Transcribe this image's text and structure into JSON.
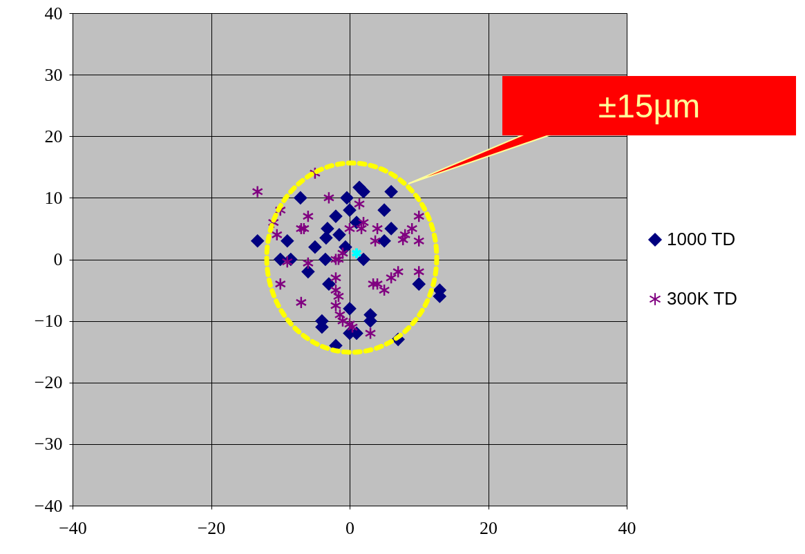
{
  "chart_data": {
    "type": "scatter",
    "xlim": [
      -40,
      40
    ],
    "xticks": [
      -40,
      -20,
      0,
      20,
      40
    ],
    "ylim": [
      -40,
      40
    ],
    "yticks": [
      -40,
      -30,
      -20,
      -10,
      0,
      10,
      20,
      30,
      40
    ],
    "grid": true,
    "legend": "right",
    "annotations": [
      "±15µm"
    ],
    "series": [
      {
        "name": "1000 TD",
        "color": "#000080",
        "marker": "diamond",
        "x": [
          -13.3,
          -7.1,
          -9,
          -10,
          -8.5,
          -6,
          -5,
          -3.2,
          -2,
          -3.4,
          -1.5,
          -3.5,
          -0.6,
          -0.4,
          1.4,
          2,
          0,
          1,
          5,
          6,
          6,
          5,
          2,
          -3,
          -4,
          -4,
          -2,
          0,
          3,
          3,
          1,
          0,
          7,
          10,
          13,
          13
        ],
        "values": [
          3,
          10,
          3,
          0,
          0,
          -2,
          2,
          5,
          7,
          3.5,
          4,
          0,
          2,
          10,
          11.7,
          11,
          8,
          6,
          8,
          11,
          5,
          3,
          0,
          -4,
          -10,
          -11,
          -14,
          -8,
          -9,
          -10,
          -12,
          -12,
          -13,
          -4,
          -5,
          -6
        ]
      },
      {
        "name": "300K TD",
        "color": "#800080",
        "marker": "cross",
        "x": [
          -13.3,
          -5,
          -10,
          -11,
          -10.5,
          -7,
          -6,
          -6.6,
          -3,
          -9,
          -6,
          -10,
          -7,
          -1.6,
          -2,
          -2,
          -2,
          -1.6,
          -2,
          -1.4,
          -1,
          0,
          1.4,
          2,
          1.7,
          4,
          3.7,
          0,
          8,
          10,
          9,
          10,
          7.7,
          -1,
          3.4,
          4,
          5,
          6,
          7,
          10,
          3,
          0.4
        ],
        "values": [
          11,
          14,
          8,
          6,
          4,
          5,
          7,
          5,
          10,
          -0.4,
          -0.6,
          -4,
          -7,
          0,
          0,
          -3,
          -5,
          -6,
          -7.5,
          -9,
          -10,
          -10.5,
          9,
          6,
          5,
          5,
          3,
          5,
          4,
          7,
          5,
          3,
          3.2,
          1,
          -4,
          -4,
          -5,
          -3,
          -2,
          -2,
          -12,
          -11
        ]
      },
      {
        "type": "scatter",
        "color": "#00ffff",
        "marker": "cross",
        "x": [
          1
        ],
        "values": [
          1
        ]
      }
    ]
  }
}
